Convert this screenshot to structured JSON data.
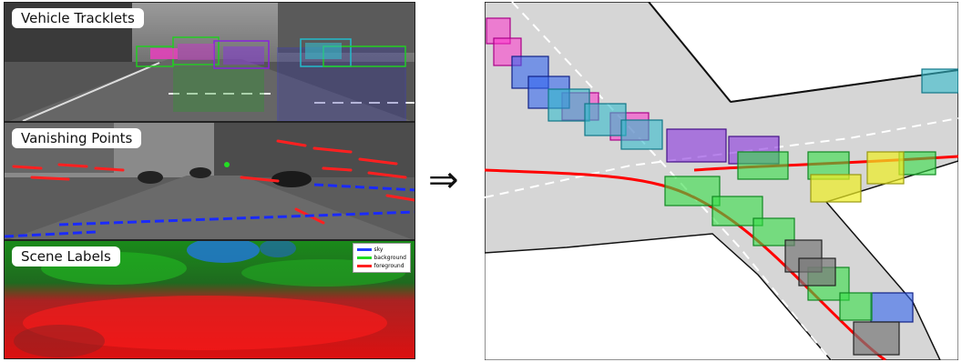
{
  "panels": {
    "tracklets": {
      "label": "Vehicle Tracklets"
    },
    "vanishing": {
      "label": "Vanishing Points"
    },
    "scene": {
      "label": "Scene Labels",
      "legend": [
        {
          "name": "sky",
          "color": "#1f3fff"
        },
        {
          "name": "background",
          "color": "#22dd22"
        },
        {
          "name": "foreground",
          "color": "#ff2020"
        }
      ]
    }
  },
  "arrow_symbol": "⇒",
  "colors": {
    "road": "#d6d6d6",
    "lane": "#ffffff",
    "path": "#ff0000",
    "magenta": "#ff33cc",
    "blue": "#3355ee",
    "cyan": "#33bbcc",
    "purple": "#8833dd",
    "green": "#33dd44",
    "yellow": "#eeee22",
    "gray": "#777777"
  }
}
